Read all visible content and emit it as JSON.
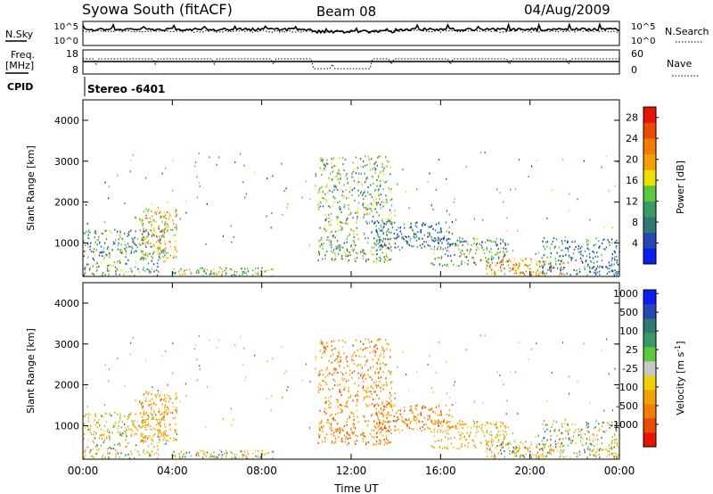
{
  "header": {
    "station": "Syowa South (fitACF)",
    "beam": "Beam 08",
    "date": "04/Aug/2009"
  },
  "noise_panel": {
    "left_label": "N.Sky",
    "right_label": "N.Search",
    "left_ticks": [
      "10^5",
      "10^0"
    ],
    "right_ticks": [
      "10^5",
      "10^0"
    ]
  },
  "freq_panel": {
    "left_label_1": "Freq.",
    "left_label_2": "[MHz]",
    "right_label": "Nave",
    "left_ticks": [
      "18",
      "8"
    ],
    "right_ticks": [
      "60",
      "0"
    ]
  },
  "cpid": {
    "label": "CPID",
    "value": "Stereo -6401"
  },
  "x_axis": {
    "title": "Time UT",
    "ticks": [
      "00:00",
      "04:00",
      "08:00",
      "12:00",
      "16:00",
      "20:00",
      "00:00"
    ]
  },
  "colors": {
    "power_scale": [
      "#0a1ef0",
      "#2846b4",
      "#2e7a72",
      "#3a9a64",
      "#5cc83c",
      "#f0e000",
      "#f6a000",
      "#f47c00",
      "#ec4a00",
      "#e81400"
    ],
    "velocity_scale": [
      "#e81400",
      "#ec4a00",
      "#f47c00",
      "#f6a000",
      "#f0d000",
      "#c8c8c8",
      "#5cc83c",
      "#3a9a64",
      "#2e7a72",
      "#2846b4",
      "#0a1ef0"
    ]
  },
  "chart_data": [
    {
      "type": "heatmap",
      "name": "power",
      "ylabel": "Slant Range [km]",
      "yticks": [
        "1000",
        "2000",
        "3000",
        "4000"
      ],
      "ylim": [
        180,
        4500
      ],
      "xlim": [
        0,
        24
      ],
      "colorbar_label": "Power [dB]",
      "colorbar_ticks": [
        "4",
        "8",
        "12",
        "16",
        "20",
        "24",
        "28"
      ],
      "colorbar_range": [
        0,
        30
      ],
      "echo_regions": [
        {
          "t0": 0.0,
          "t1": 3.7,
          "r0": 180,
          "r1": 1300,
          "v": 10
        },
        {
          "t0": 2.5,
          "t1": 4.2,
          "r0": 600,
          "r1": 1800,
          "v": 18
        },
        {
          "t0": 4.0,
          "t1": 8.5,
          "r0": 180,
          "r1": 380,
          "v": 14
        },
        {
          "t0": 10.5,
          "t1": 13.8,
          "r0": 500,
          "r1": 3100,
          "v": 12
        },
        {
          "t0": 13.0,
          "t1": 16.5,
          "r0": 850,
          "r1": 1500,
          "v": 6
        },
        {
          "t0": 15.5,
          "t1": 19.0,
          "r0": 400,
          "r1": 1100,
          "v": 10
        },
        {
          "t0": 18.0,
          "t1": 21.5,
          "r0": 180,
          "r1": 600,
          "v": 20
        },
        {
          "t0": 20.5,
          "t1": 24.0,
          "r0": 180,
          "r1": 1100,
          "v": 8
        }
      ]
    },
    {
      "type": "heatmap",
      "name": "velocity",
      "ylabel": "Slant Range [km]",
      "yticks": [
        "1000",
        "2000",
        "3000",
        "4000"
      ],
      "ylim": [
        180,
        4500
      ],
      "xlim": [
        0,
        24
      ],
      "colorbar_label": "Velocity [m s^-1]",
      "colorbar_ticks": [
        "-1000",
        "-500",
        "-100",
        "-25",
        "25",
        "100",
        "500",
        "1000"
      ],
      "echo_regions": [
        {
          "t0": 0.0,
          "t1": 3.7,
          "r0": 180,
          "r1": 1300,
          "v": -100
        },
        {
          "t0": 2.5,
          "t1": 4.2,
          "r0": 600,
          "r1": 1800,
          "v": -300
        },
        {
          "t0": 4.0,
          "t1": 8.5,
          "r0": 180,
          "r1": 380,
          "v": 0
        },
        {
          "t0": 10.5,
          "t1": 13.8,
          "r0": 500,
          "r1": 3100,
          "v": -400
        },
        {
          "t0": 13.0,
          "t1": 16.5,
          "r0": 850,
          "r1": 1500,
          "v": -500
        },
        {
          "t0": 15.5,
          "t1": 19.0,
          "r0": 400,
          "r1": 1100,
          "v": -200
        },
        {
          "t0": 18.0,
          "t1": 21.5,
          "r0": 180,
          "r1": 600,
          "v": -50
        },
        {
          "t0": 20.5,
          "t1": 24.0,
          "r0": 180,
          "r1": 1100,
          "v": 0
        }
      ]
    }
  ]
}
